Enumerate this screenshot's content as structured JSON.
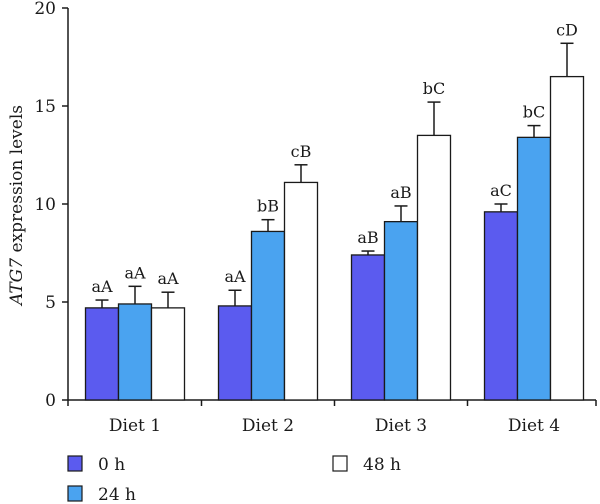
{
  "chart_data": {
    "type": "bar",
    "title": "",
    "xlabel": "",
    "ylabel_italic": "ATG7",
    "ylabel_rest": " expression levels",
    "ylim": [
      0,
      20
    ],
    "yticks": [
      "0",
      "5",
      "10",
      "15",
      "20"
    ],
    "categories": [
      "Diet 1",
      "Diet 2",
      "Diet 3",
      "Diet 4"
    ],
    "series": [
      {
        "name": "0 h",
        "color": "#5b5bef",
        "values": [
          4.7,
          4.8,
          7.4,
          9.6
        ],
        "errors": [
          0.4,
          0.8,
          0.2,
          0.4
        ],
        "labels": [
          "aA",
          "aA",
          "aB",
          "aC"
        ]
      },
      {
        "name": "24 h",
        "color": "#4aa3f0",
        "values": [
          4.9,
          8.6,
          9.1,
          13.4
        ],
        "errors": [
          0.9,
          0.6,
          0.8,
          0.6
        ],
        "labels": [
          "aA",
          "bB",
          "aB",
          "bC"
        ]
      },
      {
        "name": "48 h",
        "color": "#ffffff",
        "values": [
          4.7,
          11.1,
          13.5,
          16.5
        ],
        "errors": [
          0.8,
          0.9,
          1.7,
          1.7
        ],
        "labels": [
          "aA",
          "cB",
          "bC",
          "cD"
        ]
      }
    ],
    "legend_placement": "bottom",
    "grid": false
  }
}
